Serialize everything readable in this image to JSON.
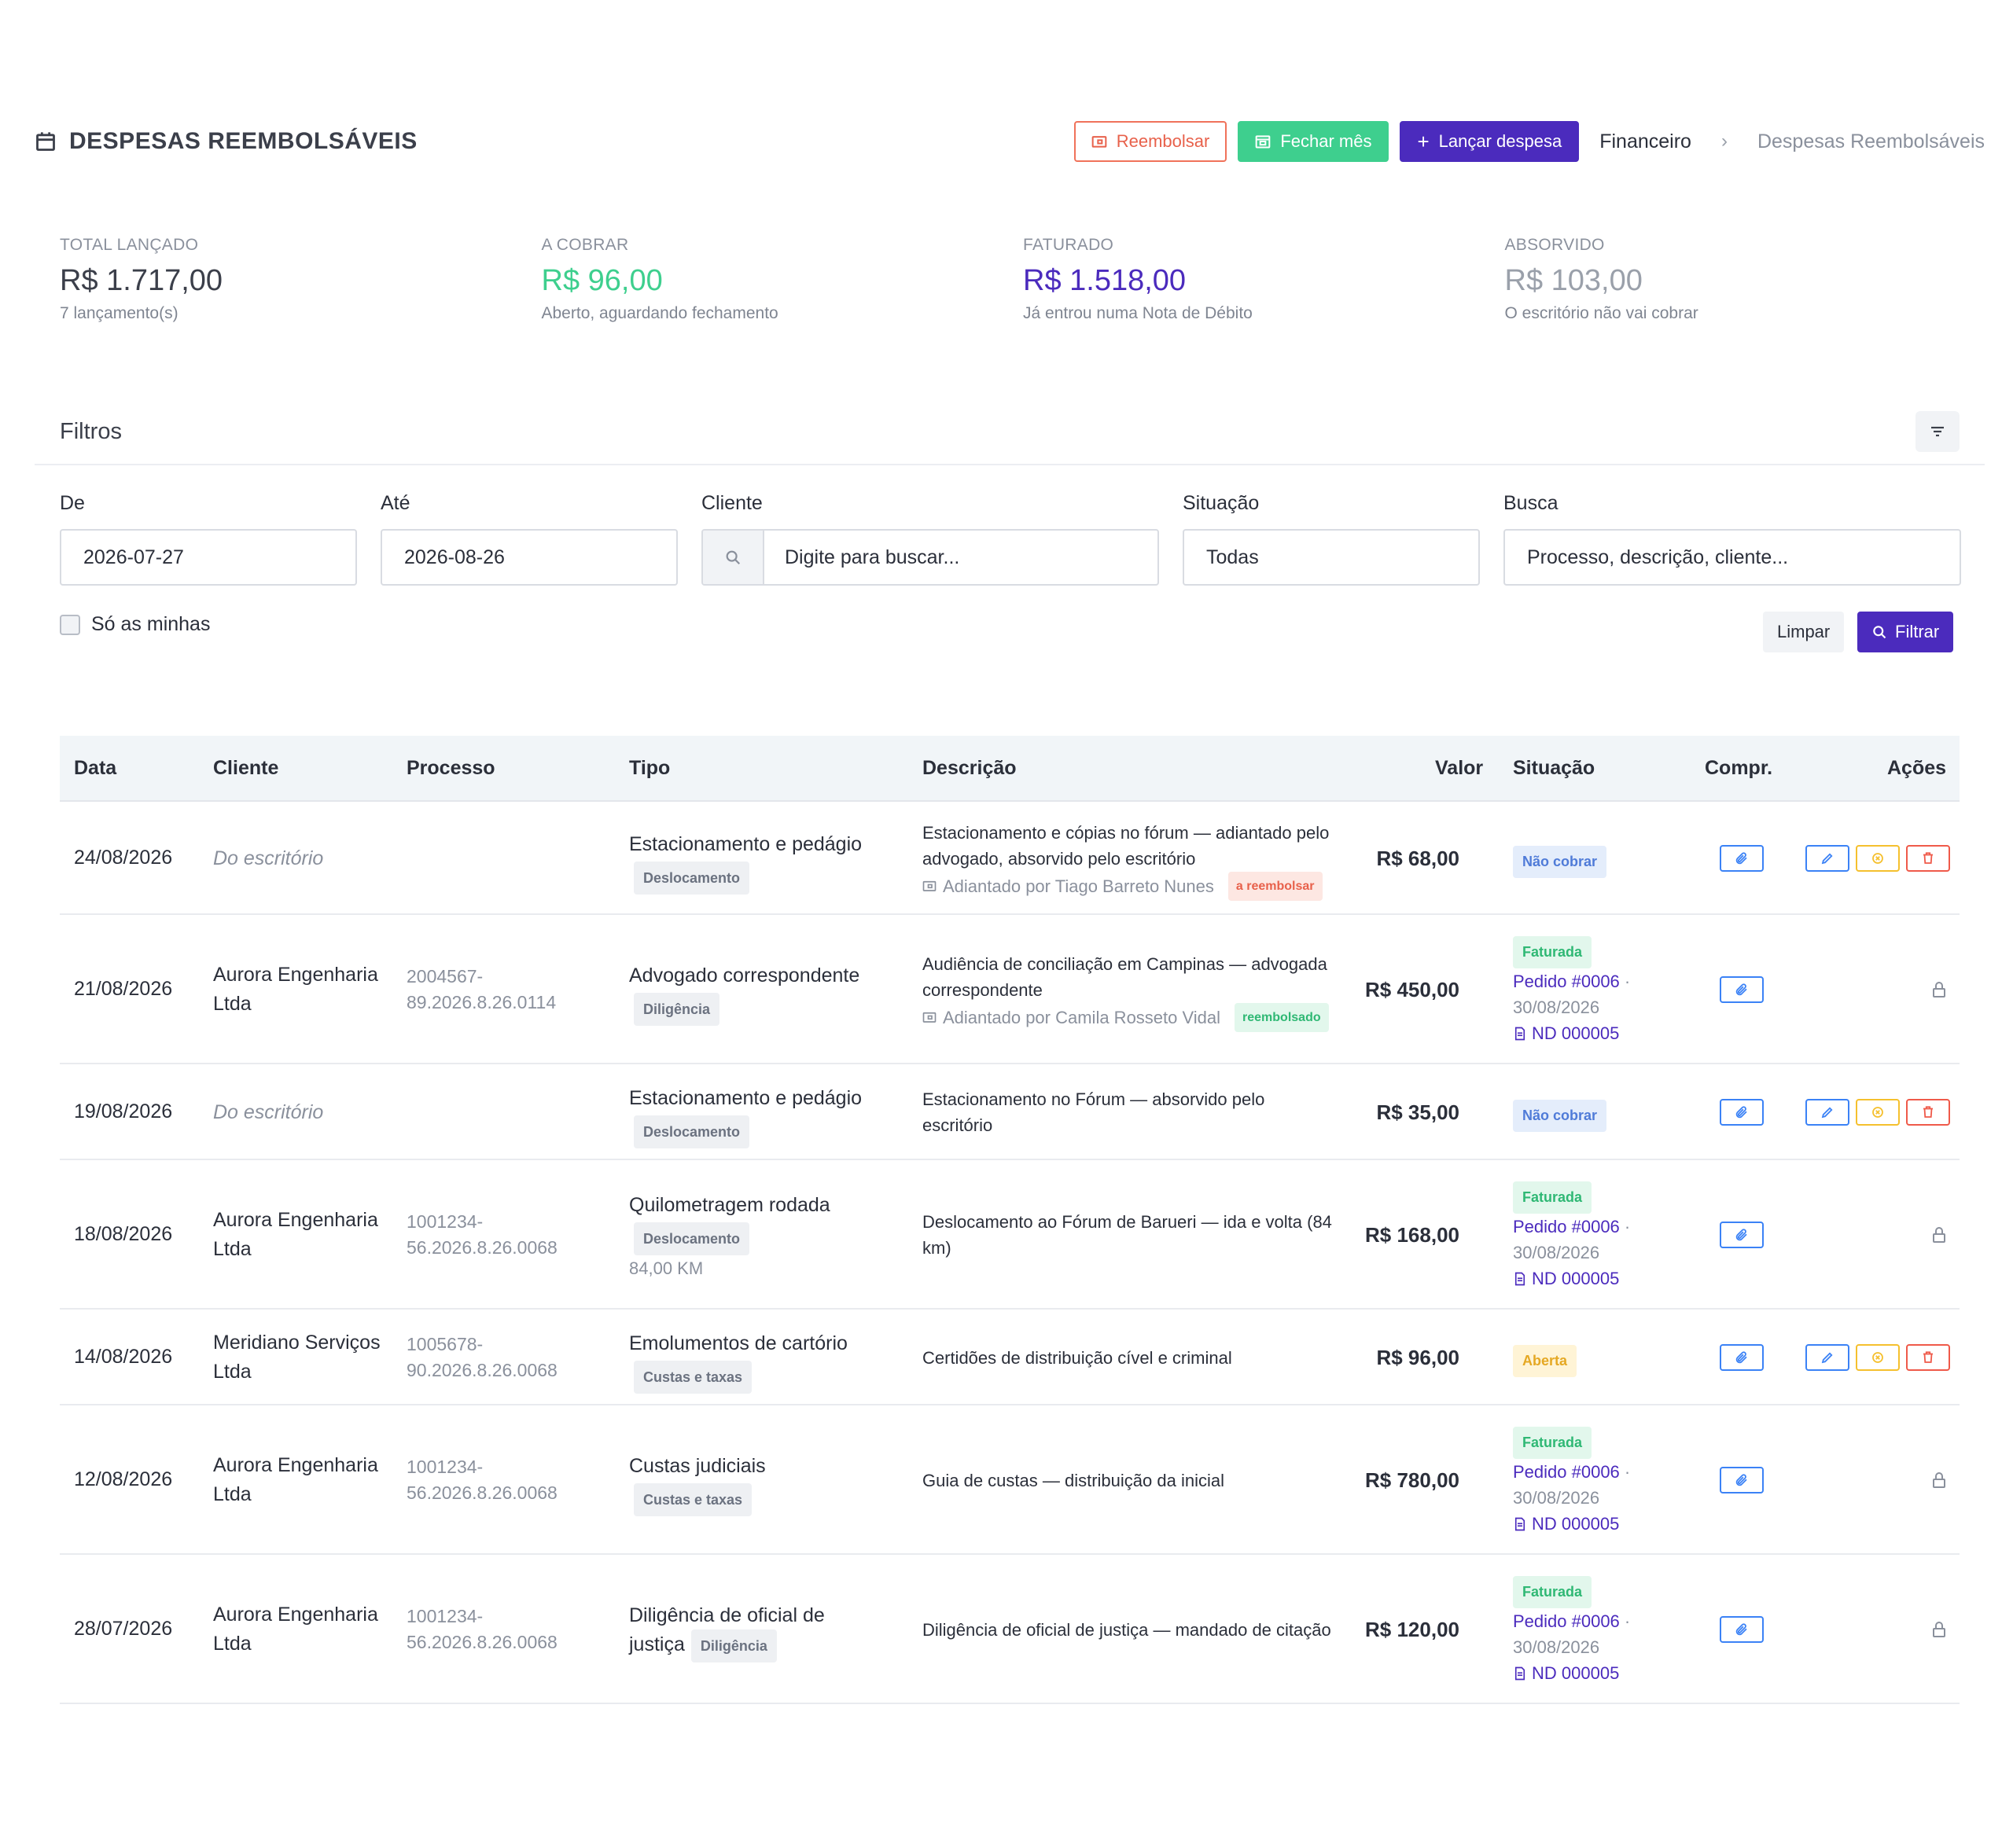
{
  "header": {
    "title": "DESPESAS REEMBOLSÁVEIS",
    "buttons": {
      "reembolsar": "Reembolsar",
      "fechar_mes": "Fechar mês",
      "lancar": "Lançar despesa"
    },
    "breadcrumb": {
      "parent": "Financeiro",
      "current": "Despesas Reembolsáveis"
    }
  },
  "stats": [
    {
      "label": "TOTAL LANÇADO",
      "value": "R$ 1.717,00",
      "sub": "7 lançamento(s)",
      "color": "#3b3f4a"
    },
    {
      "label": "A COBRAR",
      "value": "R$ 96,00",
      "sub": "Aberto, aguardando fechamento",
      "color": "#3ecf8e"
    },
    {
      "label": "FATURADO",
      "value": "R$ 1.518,00",
      "sub": "Já entrou numa Nota de Débito",
      "color": "#4b2bbd"
    },
    {
      "label": "ABSORVIDO",
      "value": "R$ 103,00",
      "sub": "O escritório não vai cobrar",
      "color": "#9aa0aa"
    }
  ],
  "filters": {
    "title": "Filtros",
    "de_label": "De",
    "de_value": "2026-07-27",
    "ate_label": "Até",
    "ate_value": "2026-08-26",
    "cliente_label": "Cliente",
    "cliente_placeholder": "Digite para buscar...",
    "situacao_label": "Situação",
    "situacao_value": "Todas",
    "busca_label": "Busca",
    "busca_placeholder": "Processo, descrição, cliente...",
    "so_minhas": "Só as minhas",
    "limpar": "Limpar",
    "filtrar": "Filtrar"
  },
  "table": {
    "headers": [
      "Data",
      "Cliente",
      "Processo",
      "Tipo",
      "Descrição",
      "Valor",
      "Situação",
      "Compr.",
      "Ações"
    ],
    "rows": [
      {
        "data": "24/08/2026",
        "cliente": "Do escritório",
        "cliente_italic": true,
        "processo": [
          "",
          ""
        ],
        "tipo": "Estacionamento e pedágio",
        "tag": "Deslocamento",
        "tipo_extra": "",
        "desc": [
          "Estacionamento e cópias no fórum — adiantado pelo",
          "advogado, absorvido pelo escritório"
        ],
        "adiantado": "Adiantado por Tiago Barreto Nunes",
        "adiantado_badge": "a reembolsar",
        "adiantado_badge_type": "red",
        "valor": "R$ 68,00",
        "situacao": "Não cobrar",
        "situacao_type": "blue",
        "pedido": "",
        "pedido_data": "",
        "nd": "",
        "editable": true
      },
      {
        "data": "21/08/2026",
        "cliente": "Aurora Engenharia Ltda",
        "cliente_italic": false,
        "processo": [
          "2004567-",
          "89.2026.8.26.0114"
        ],
        "tipo": "Advogado correspondente",
        "tag": "Diligência",
        "tipo_extra": "",
        "desc": [
          "Audiência de conciliação em Campinas — advogada",
          "correspondente"
        ],
        "adiantado": "Adiantado por Camila Rosseto Vidal",
        "adiantado_badge": "reembolsado",
        "adiantado_badge_type": "green",
        "valor": "R$ 450,00",
        "situacao": "Faturada",
        "situacao_type": "green",
        "pedido": "Pedido #0006",
        "pedido_data": "30/08/2026",
        "nd": "ND 000005",
        "editable": false
      },
      {
        "data": "19/08/2026",
        "cliente": "Do escritório",
        "cliente_italic": true,
        "processo": [
          "",
          ""
        ],
        "tipo": "Estacionamento e pedágio",
        "tag": "Deslocamento",
        "tipo_extra": "",
        "desc": [
          "Estacionamento no Fórum — absorvido pelo",
          "escritório"
        ],
        "adiantado": "",
        "adiantado_badge": "",
        "adiantado_badge_type": "",
        "valor": "R$ 35,00",
        "situacao": "Não cobrar",
        "situacao_type": "blue",
        "pedido": "",
        "pedido_data": "",
        "nd": "",
        "editable": true
      },
      {
        "data": "18/08/2026",
        "cliente": "Aurora Engenharia Ltda",
        "cliente_italic": false,
        "processo": [
          "1001234-",
          "56.2026.8.26.0068"
        ],
        "tipo": "Quilometragem rodada",
        "tag": "Deslocamento",
        "tipo_extra": "84,00 KM",
        "desc": [
          "Deslocamento ao Fórum de Barueri — ida e volta (84",
          "km)"
        ],
        "adiantado": "",
        "adiantado_badge": "",
        "adiantado_badge_type": "",
        "valor": "R$ 168,00",
        "situacao": "Faturada",
        "situacao_type": "green",
        "pedido": "Pedido #0006",
        "pedido_data": "30/08/2026",
        "nd": "ND 000005",
        "editable": false
      },
      {
        "data": "14/08/2026",
        "cliente": "Meridiano Serviços Ltda",
        "cliente_italic": false,
        "processo": [
          "1005678-",
          "90.2026.8.26.0068"
        ],
        "tipo": "Emolumentos de cartório",
        "tag": "Custas e taxas",
        "tipo_extra": "",
        "desc": [
          "Certidões de distribuição cível e criminal",
          ""
        ],
        "adiantado": "",
        "adiantado_badge": "",
        "adiantado_badge_type": "",
        "valor": "R$ 96,00",
        "situacao": "Aberta",
        "situacao_type": "yellow",
        "pedido": "",
        "pedido_data": "",
        "nd": "",
        "editable": true
      },
      {
        "data": "12/08/2026",
        "cliente": "Aurora Engenharia Ltda",
        "cliente_italic": false,
        "processo": [
          "1001234-",
          "56.2026.8.26.0068"
        ],
        "tipo": "Custas judiciais",
        "tag": "Custas e taxas",
        "tipo_extra": "",
        "desc": [
          "Guia de custas — distribuição da inicial",
          ""
        ],
        "adiantado": "",
        "adiantado_badge": "",
        "adiantado_badge_type": "",
        "valor": "R$ 780,00",
        "situacao": "Faturada",
        "situacao_type": "green",
        "pedido": "Pedido #0006",
        "pedido_data": "30/08/2026",
        "nd": "ND 000005",
        "editable": false
      },
      {
        "data": "28/07/2026",
        "cliente": "Aurora Engenharia Ltda",
        "cliente_italic": false,
        "processo": [
          "1001234-",
          "56.2026.8.26.0068"
        ],
        "tipo": "Diligência de oficial de justiça",
        "tag": "Diligência",
        "tipo_extra": "",
        "desc": [
          "Diligência de oficial de justiça — mandado de citação",
          ""
        ],
        "adiantado": "",
        "adiantado_badge": "",
        "adiantado_badge_type": "",
        "valor": "R$ 120,00",
        "situacao": "Faturada",
        "situacao_type": "green",
        "pedido": "Pedido #0006",
        "pedido_data": "30/08/2026",
        "nd": "ND 000005",
        "editable": false
      }
    ]
  }
}
